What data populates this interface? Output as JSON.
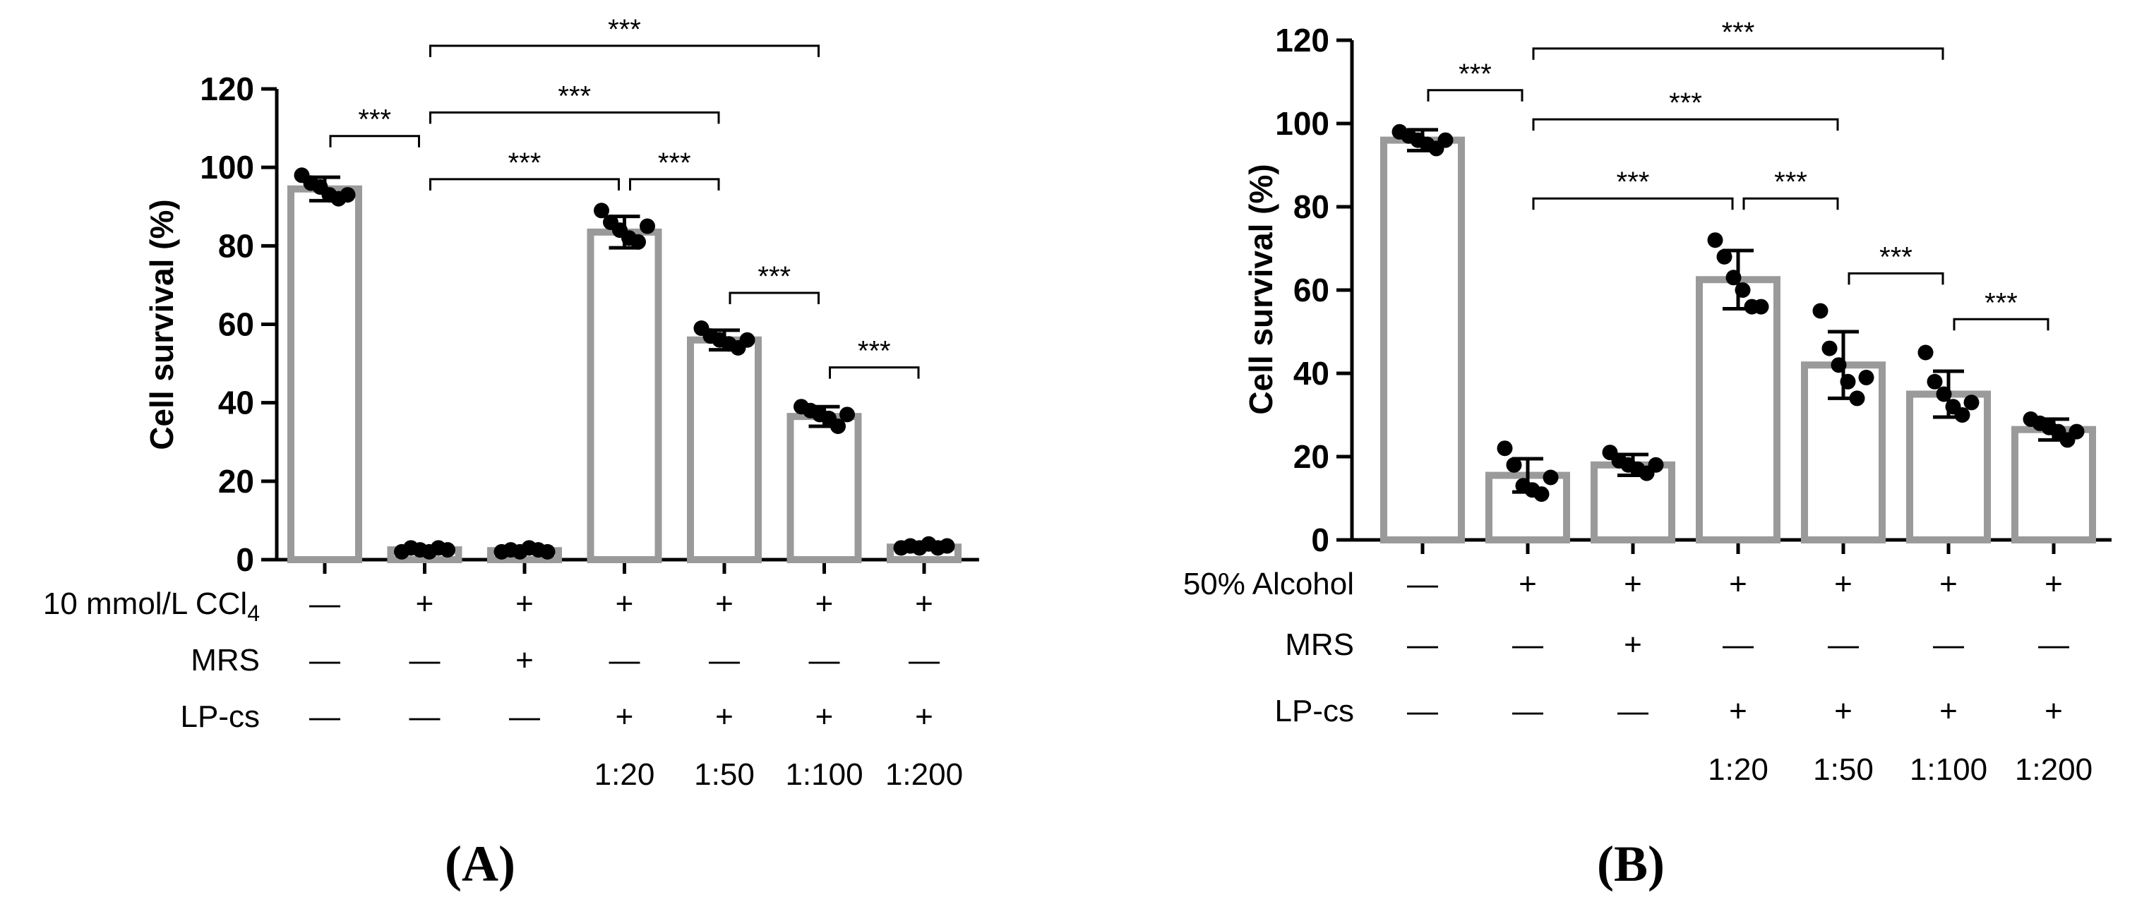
{
  "colors": {
    "bar_stroke": "#9a9a9a",
    "bar_fill": "#ffffff",
    "axis": "#000000",
    "point": "#000000",
    "text": "#000000"
  },
  "chart_data": [
    {
      "type": "bar",
      "panel_label": "(A)",
      "ylabel": "Cell survival (%)",
      "ylim": [
        0,
        120
      ],
      "yticks": [
        0,
        20,
        40,
        60,
        80,
        100,
        120
      ],
      "yticklabels": [
        "0",
        "20",
        "40",
        "60",
        "80",
        "100",
        "120"
      ],
      "grid": false,
      "values": [
        94.5,
        2.5,
        2.3,
        83.5,
        56,
        36.5,
        3.2
      ],
      "errors": [
        3,
        0.5,
        0.5,
        4,
        2.5,
        2.5,
        0.5
      ],
      "points": [
        [
          98,
          96,
          95,
          93,
          92,
          93
        ],
        [
          2,
          3,
          2.5,
          2,
          3,
          2.5
        ],
        [
          2,
          2.5,
          2,
          3,
          2.5,
          2
        ],
        [
          89,
          86,
          84,
          82,
          81,
          85
        ],
        [
          59,
          57,
          56,
          55,
          54,
          56
        ],
        [
          39,
          38,
          37,
          36,
          34,
          37
        ],
        [
          3,
          3.5,
          3,
          4,
          3,
          3.5
        ]
      ],
      "treatment_rows": [
        {
          "label": "10 mmol/L CCl",
          "label_sub": "4",
          "symbols": [
            "—",
            "+",
            "+",
            "+",
            "+",
            "+",
            "+"
          ]
        },
        {
          "label": "MRS",
          "label_sub": "",
          "symbols": [
            "—",
            "—",
            "+",
            "—",
            "—",
            "—",
            "—"
          ]
        },
        {
          "label": "LP-cs",
          "label_sub": "",
          "symbols": [
            "—",
            "—",
            "—",
            "+",
            "+",
            "+",
            "+"
          ]
        }
      ],
      "dilutions": [
        "",
        "",
        "",
        "1:20",
        "1:50",
        "1:100",
        "1:200"
      ],
      "significance": [
        {
          "from": 0,
          "to": 1,
          "y": 108,
          "label": "***"
        },
        {
          "from": 1,
          "to": 5,
          "y": 131,
          "label": "***"
        },
        {
          "from": 1,
          "to": 4,
          "y": 114,
          "label": "***"
        },
        {
          "from": 1,
          "to": 3,
          "y": 97,
          "label": "***"
        },
        {
          "from": 3,
          "to": 4,
          "y": 97,
          "label": "***"
        },
        {
          "from": 4,
          "to": 5,
          "y": 68,
          "label": "***"
        },
        {
          "from": 5,
          "to": 6,
          "y": 49,
          "label": "***"
        }
      ]
    },
    {
      "type": "bar",
      "panel_label": "(B)",
      "ylabel": "Cell survival (%)",
      "ylim": [
        0,
        120
      ],
      "yticks": [
        0,
        20,
        40,
        60,
        80,
        100,
        120
      ],
      "yticklabels": [
        "0",
        "20",
        "40",
        "60",
        "80",
        "100",
        "120"
      ],
      "grid": false,
      "values": [
        96,
        15.5,
        18,
        62.5,
        42,
        35,
        26.5
      ],
      "errors": [
        2.5,
        4,
        2.5,
        7,
        8,
        5.5,
        2.5
      ],
      "points": [
        [
          98,
          97,
          96,
          95,
          94,
          96
        ],
        [
          22,
          18,
          13,
          12,
          11,
          15
        ],
        [
          21,
          19,
          18,
          17,
          16,
          18
        ],
        [
          72,
          68,
          63,
          60,
          56,
          56
        ],
        [
          55,
          46,
          42,
          38,
          34,
          39
        ],
        [
          45,
          38,
          35,
          32,
          30,
          33
        ],
        [
          29,
          28,
          27,
          26,
          24,
          26
        ]
      ],
      "treatment_rows": [
        {
          "label": "50% Alcohol",
          "label_sub": "",
          "symbols": [
            "—",
            "+",
            "+",
            "+",
            "+",
            "+",
            "+"
          ]
        },
        {
          "label": "MRS",
          "label_sub": "",
          "symbols": [
            "—",
            "—",
            "+",
            "—",
            "—",
            "—",
            "—"
          ]
        },
        {
          "label": "LP-cs",
          "label_sub": "",
          "symbols": [
            "—",
            "—",
            "—",
            "+",
            "+",
            "+",
            "+"
          ]
        }
      ],
      "dilutions": [
        "",
        "",
        "",
        "1:20",
        "1:50",
        "1:100",
        "1:200"
      ],
      "significance": [
        {
          "from": 0,
          "to": 1,
          "y": 108,
          "label": "***"
        },
        {
          "from": 1,
          "to": 5,
          "y": 118,
          "label": "***"
        },
        {
          "from": 1,
          "to": 4,
          "y": 101,
          "label": "***"
        },
        {
          "from": 1,
          "to": 3,
          "y": 82,
          "label": "***"
        },
        {
          "from": 3,
          "to": 4,
          "y": 82,
          "label": "***"
        },
        {
          "from": 4,
          "to": 5,
          "y": 64,
          "label": "***"
        },
        {
          "from": 5,
          "to": 6,
          "y": 53,
          "label": "***"
        }
      ]
    }
  ]
}
